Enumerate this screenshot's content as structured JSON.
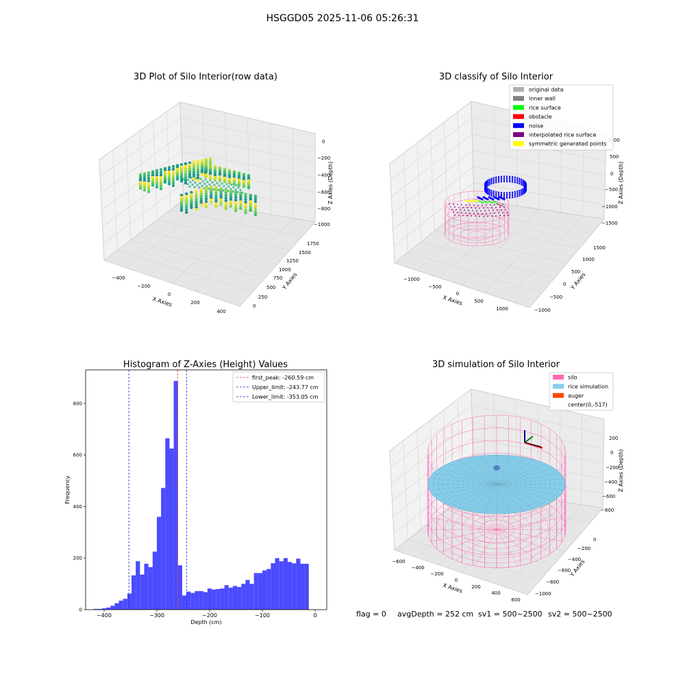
{
  "figure_title": "HSGGD05 2025-11-06 05:26:31",
  "status_line": {
    "flag": "flag = 0",
    "avg_depth": "avgDepth = 252 cm",
    "sv1": "sv1 = 500~2500",
    "sv2": "sv2 = 500~2500"
  },
  "colors": {
    "hist_bar": "#4b4bff",
    "peak_line": "#e03030",
    "limit_line": "#2222cc",
    "silo": "#ff69b4",
    "rice_simulation": "#87ceeb",
    "auger": "#ff4500",
    "original_data": "#b0b0b0",
    "inner_wall": "#808080",
    "rice_surface": "#00ff00",
    "obstacle": "#ff0000",
    "noise": "#0000ff",
    "interpolated_rice_surface": "#800080",
    "symmetric_generated_points": "#ffff00"
  },
  "chart_data": [
    {
      "type": "scatter",
      "title": "3D Plot of Silo Interior(row data)",
      "xlabel": "X Axies",
      "ylabel": "Y Axies",
      "zlabel": "Z Axies (Depth)",
      "xticks": [
        "−400",
        "−200",
        "0",
        "200",
        "400"
      ],
      "yticks": [
        "0",
        "250",
        "500",
        "750",
        "1000",
        "1250",
        "1500",
        "1750"
      ],
      "zticks": [
        "0",
        "−200",
        "−400",
        "−600",
        "−800",
        "−1000"
      ]
    },
    {
      "type": "scatter",
      "title": "3D classify of Silo Interior",
      "xlabel": "X Axies",
      "ylabel": "Y Axies",
      "zlabel": "Z Axies (Depth)",
      "xticks": [
        "−1000",
        "−500",
        "0",
        "500",
        "1000"
      ],
      "yticks": [
        "−1000",
        "−500",
        "0",
        "500",
        "1000",
        "1500"
      ],
      "zticks": [
        "1000",
        "500",
        "0",
        "−500",
        "−1000",
        "−1500"
      ],
      "legend": [
        "original data",
        "inner wall",
        "rice surface",
        "obstacle",
        "noise",
        "interpolated rice surface",
        "symmetric generated points"
      ],
      "legend_placement": "top-right"
    },
    {
      "type": "bar",
      "title": "Histogram of Z-Axies (Height) Values",
      "xlabel": "Depth (cm)",
      "ylabel": "Frequency",
      "xlim": [
        -435,
        22
      ],
      "ylim": [
        0,
        930
      ],
      "xticks": [
        "−400",
        "−300",
        "−200",
        "−100",
        "0"
      ],
      "yticks": [
        "0",
        "200",
        "400",
        "600",
        "800"
      ],
      "bin_width": 8,
      "bin_starts": [
        -420,
        -412,
        -404,
        -396,
        -388,
        -380,
        -372,
        -364,
        -356,
        -348,
        -340,
        -332,
        -324,
        -316,
        -308,
        -300,
        -292,
        -284,
        -276,
        -268,
        -260,
        -252,
        -244,
        -236,
        -228,
        -220,
        -212,
        -204,
        -196,
        -188,
        -180,
        -172,
        -164,
        -156,
        -148,
        -140,
        -132,
        -124,
        -116,
        -108,
        -100,
        -92,
        -84,
        -76,
        -68,
        -60,
        -52,
        -44,
        -36,
        -28,
        -20,
        -12
      ],
      "values": [
        3,
        3,
        5,
        8,
        15,
        25,
        35,
        42,
        62,
        133,
        188,
        136,
        178,
        165,
        225,
        360,
        472,
        665,
        625,
        887,
        172,
        55,
        70,
        65,
        72,
        72,
        68,
        82,
        78,
        80,
        82,
        95,
        85,
        92,
        88,
        100,
        115,
        100,
        142,
        142,
        152,
        158,
        180,
        200,
        188,
        200,
        185,
        180,
        198,
        178,
        178,
        0
      ],
      "annotations": [
        {
          "label": "first_peak: -260.59 cm",
          "value": -260.59,
          "style": "dashed",
          "color": "red"
        },
        {
          "label": "Upper_limit: -243.77 cm",
          "value": -243.77,
          "style": "dashed",
          "color": "blue"
        },
        {
          "label": "Lower_limit: -353.05 cm",
          "value": -353.05,
          "style": "dashed",
          "color": "blue"
        }
      ],
      "legend_placement": "top-right"
    },
    {
      "type": "scatter",
      "title": "3D simulation of Silo Interior",
      "xlabel": "X Axies",
      "ylabel": "Y Axies",
      "zlabel": "Z Axies (Depth)",
      "xticks": [
        "−600",
        "−400",
        "−200",
        "0",
        "200",
        "400",
        "600"
      ],
      "yticks": [
        "−1000",
        "−800",
        "−600",
        "−400",
        "−200",
        "0"
      ],
      "zticks": [
        "200",
        "0",
        "−200",
        "−400",
        "−600",
        "−800"
      ],
      "legend": [
        "silo",
        "rice simulation",
        "auger",
        "center(0,-517)"
      ],
      "legend_placement": "top-right"
    }
  ]
}
